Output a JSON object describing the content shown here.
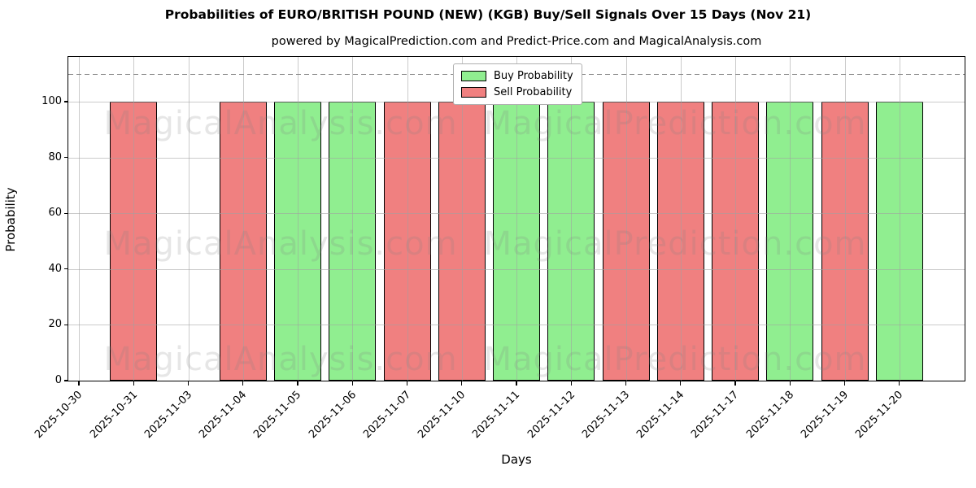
{
  "title": "Probabilities of EURO/BRITISH POUND (NEW) (KGB) Buy/Sell Signals Over 15 Days (Nov 21)",
  "subtitle": "powered by MagicalPrediction.com and Predict-Price.com and MagicalAnalysis.com",
  "axes": {
    "x_label": "Days",
    "y_label": "Probability",
    "y_ticks": [
      0,
      20,
      40,
      60,
      80,
      100
    ],
    "ylim": [
      0,
      116
    ],
    "threshold_value": 110,
    "grid": true
  },
  "legend": [
    {
      "label": "Buy Probability",
      "color": "#90ee90"
    },
    {
      "label": "Sell Probability",
      "color": "#f08080"
    }
  ],
  "watermarks": {
    "left_text": "MagicalAnalysis.com",
    "right_text": "MagicalPrediction.com"
  },
  "colors": {
    "buy": "#90ee90",
    "sell": "#f08080",
    "bar_edge": "#000000",
    "grid": "rgba(160,160,160,0.55)",
    "dashed_line": "#8c8c8c",
    "watermark": "rgba(128,128,128,0.20)",
    "axis": "#000000"
  },
  "chart_data": {
    "type": "bar",
    "title": "Probabilities of EURO/BRITISH POUND (NEW) (KGB) Buy/Sell Signals Over 15 Days (Nov 21)",
    "xlabel": "Days",
    "ylabel": "Probability",
    "ylim": [
      0,
      116
    ],
    "grid": true,
    "legend_position": "top-center",
    "threshold_line": 110,
    "categories": [
      "2025-10-30",
      "2025-10-31",
      "2025-11-03",
      "2025-11-04",
      "2025-11-05",
      "2025-11-06",
      "2025-11-07",
      "2025-11-10",
      "2025-11-11",
      "2025-11-12",
      "2025-11-13",
      "2025-11-14",
      "2025-11-17",
      "2025-11-18",
      "2025-11-19",
      "2025-11-20"
    ],
    "series": [
      {
        "name": "Buy Probability",
        "color": "#90ee90",
        "values": [
          0,
          0,
          0,
          0,
          100,
          100,
          0,
          0,
          100,
          100,
          0,
          0,
          0,
          100,
          0,
          100
        ]
      },
      {
        "name": "Sell Probability",
        "color": "#f08080",
        "values": [
          0,
          100,
          0,
          100,
          0,
          0,
          100,
          100,
          0,
          0,
          100,
          100,
          100,
          0,
          100,
          0
        ]
      }
    ]
  }
}
